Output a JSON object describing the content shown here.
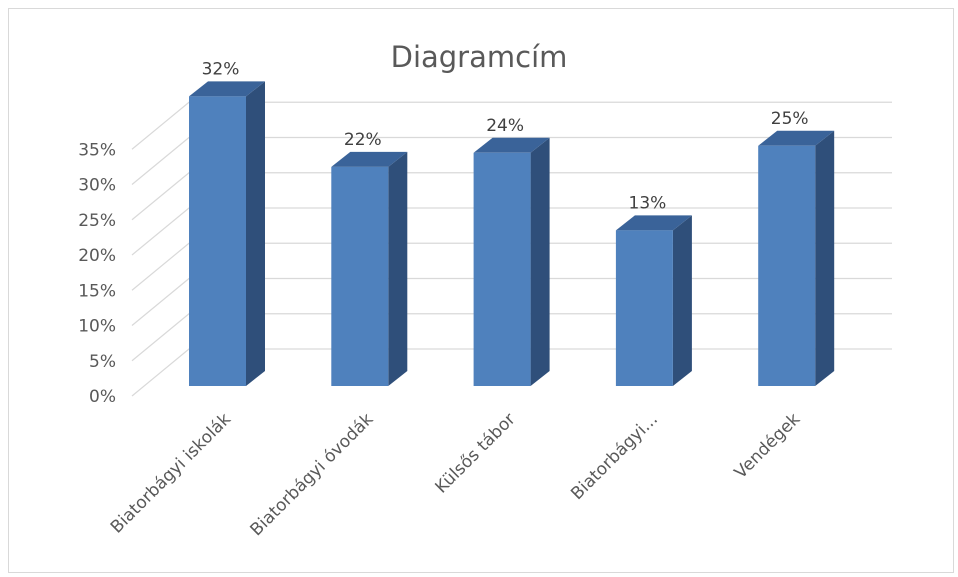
{
  "chart_data": {
    "type": "bar",
    "style": "3d-column",
    "title": "Diagramcím",
    "categories": [
      "Biatorbágyi iskolák",
      "Biatorbágyi óvodák",
      "Külsős tábor",
      "Biatorbágyi...",
      "Vendégek"
    ],
    "values": [
      32,
      22,
      24,
      13,
      25
    ],
    "data_labels": [
      "32%",
      "22%",
      "24%",
      "13%",
      "25%"
    ],
    "yticks": [
      "0%",
      "5%",
      "10%",
      "15%",
      "20%",
      "25%",
      "30%",
      "35%"
    ],
    "ylim": [
      0,
      35
    ],
    "grid": true,
    "legend": "none",
    "colors": {
      "front": "#4f81bd",
      "side": "#2f4f7a",
      "top": "#3a6399",
      "grid": "#d9d9d9",
      "text": "#595959"
    }
  }
}
